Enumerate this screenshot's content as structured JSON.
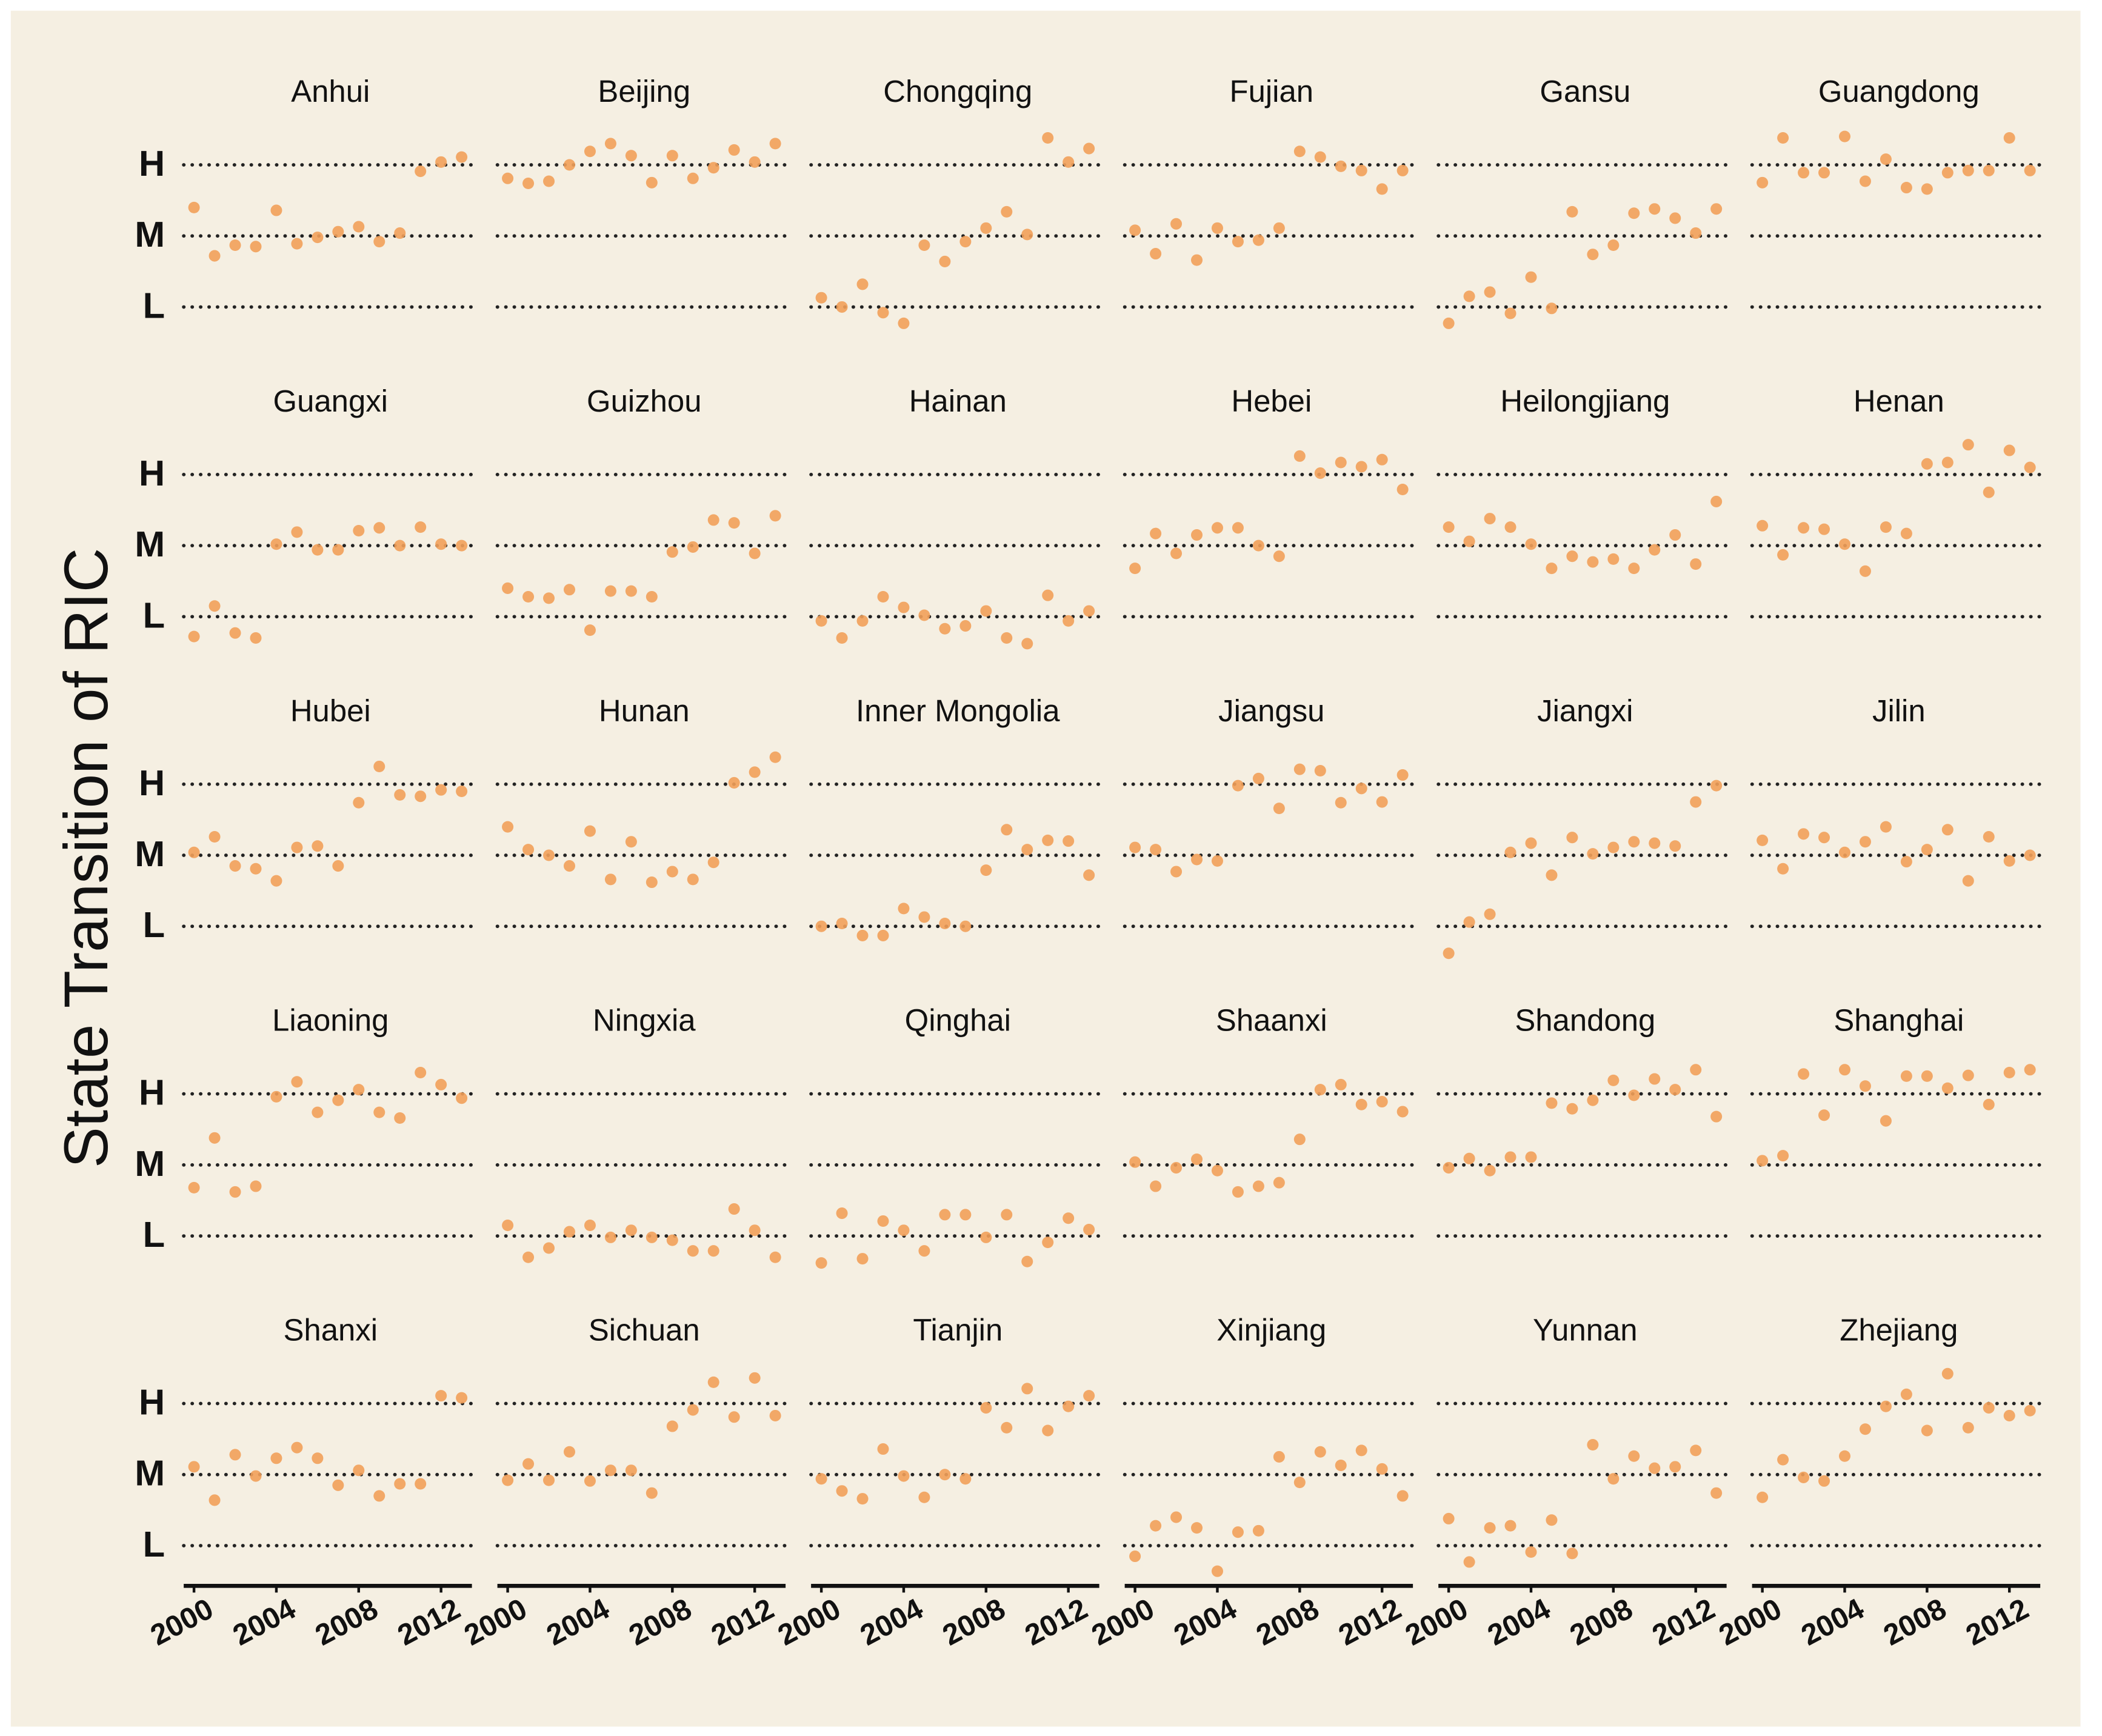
{
  "chart_data": {
    "type": "scatter",
    "y_label": "State Transition of RIC",
    "color": "#f2a05a",
    "x": [
      2000,
      2001,
      2002,
      2003,
      2004,
      2005,
      2006,
      2007,
      2008,
      2009,
      2010,
      2011,
      2012,
      2013
    ],
    "xlim": [
      1999.5,
      2013.5
    ],
    "xticks": [
      2000,
      2004,
      2008,
      2012
    ],
    "ylim": [
      0.5,
      3.5
    ],
    "yticks": [
      {
        "value": 1,
        "label": "L"
      },
      {
        "value": 2,
        "label": "M"
      },
      {
        "value": 3,
        "label": "H"
      }
    ],
    "grid": true,
    "panels": [
      {
        "title": "Anhui",
        "values": [
          2.4,
          1.72,
          1.87,
          1.85,
          2.36,
          1.89,
          1.98,
          2.06,
          2.13,
          1.92,
          2.04,
          2.91,
          3.04,
          3.11
        ]
      },
      {
        "title": "Beijing",
        "values": [
          2.81,
          2.74,
          2.77,
          3.0,
          3.19,
          3.3,
          3.13,
          2.75,
          3.13,
          2.81,
          2.96,
          3.21,
          3.04,
          3.3
        ]
      },
      {
        "title": "Chongqing",
        "values": [
          1.13,
          1.0,
          1.32,
          0.92,
          0.77,
          1.87,
          1.64,
          1.92,
          2.11,
          2.34,
          2.02,
          3.38,
          3.04,
          3.23
        ]
      },
      {
        "title": "Fujian",
        "values": [
          2.08,
          1.75,
          2.17,
          1.66,
          2.11,
          1.92,
          1.94,
          2.11,
          3.19,
          3.11,
          2.98,
          2.92,
          2.66,
          2.92
        ]
      },
      {
        "title": "Gansu",
        "values": [
          0.77,
          1.15,
          1.21,
          0.91,
          1.42,
          0.98,
          2.34,
          1.74,
          1.87,
          2.32,
          2.38,
          2.25,
          2.04,
          2.38
        ]
      },
      {
        "title": "Guangdong",
        "values": [
          2.75,
          3.38,
          2.89,
          2.89,
          3.4,
          2.77,
          3.08,
          2.68,
          2.66,
          2.89,
          2.92,
          2.92,
          3.38,
          2.92
        ]
      },
      {
        "title": "Guangxi",
        "values": [
          0.72,
          1.15,
          0.77,
          0.7,
          2.02,
          2.19,
          1.94,
          1.94,
          2.21,
          2.25,
          2.0,
          2.26,
          2.02,
          2.0
        ]
      },
      {
        "title": "Guizhou",
        "values": [
          1.4,
          1.28,
          1.26,
          1.38,
          0.81,
          1.36,
          1.36,
          1.28,
          1.91,
          1.98,
          2.36,
          2.32,
          1.89,
          2.42
        ]
      },
      {
        "title": "Hainan",
        "values": [
          0.94,
          0.7,
          0.94,
          1.28,
          1.13,
          1.02,
          0.83,
          0.87,
          1.08,
          0.7,
          0.62,
          1.3,
          0.94,
          1.08
        ]
      },
      {
        "title": "Hebei",
        "values": [
          1.68,
          2.17,
          1.89,
          2.15,
          2.25,
          2.25,
          2.0,
          1.85,
          3.26,
          3.02,
          3.17,
          3.11,
          3.21,
          2.79
        ]
      },
      {
        "title": "Heilongjiang",
        "values": [
          2.26,
          2.06,
          2.38,
          2.26,
          2.02,
          1.68,
          1.85,
          1.77,
          1.81,
          1.68,
          1.94,
          2.15,
          1.74,
          2.62
        ]
      },
      {
        "title": "Henan",
        "values": [
          2.28,
          1.87,
          2.25,
          2.23,
          2.02,
          1.64,
          2.26,
          2.17,
          3.15,
          3.17,
          3.42,
          2.75,
          3.34,
          3.1
        ]
      },
      {
        "title": "Hubei",
        "values": [
          2.04,
          2.26,
          1.85,
          1.81,
          1.64,
          2.11,
          2.13,
          1.85,
          2.74,
          3.25,
          2.85,
          2.83,
          2.92,
          2.9
        ]
      },
      {
        "title": "Hunan",
        "values": [
          2.4,
          2.08,
          2.0,
          1.85,
          2.34,
          1.66,
          2.19,
          1.62,
          1.77,
          1.66,
          1.9,
          3.02,
          3.17,
          3.38
        ]
      },
      {
        "title": "Inner Mongolia",
        "values": [
          1.0,
          1.04,
          0.87,
          0.87,
          1.25,
          1.13,
          1.04,
          1.0,
          1.79,
          2.36,
          2.08,
          2.21,
          2.2,
          1.72
        ]
      },
      {
        "title": "Jiangsu",
        "values": [
          2.11,
          2.08,
          1.77,
          1.94,
          1.92,
          2.98,
          3.08,
          2.66,
          3.21,
          3.19,
          2.74,
          2.94,
          2.75,
          3.13
        ]
      },
      {
        "title": "Jiangxi",
        "values": [
          0.62,
          1.06,
          1.17,
          2.04,
          2.17,
          1.72,
          2.25,
          2.02,
          2.11,
          2.19,
          2.17,
          2.13,
          2.75,
          2.98
        ]
      },
      {
        "title": "Jilin",
        "values": [
          2.21,
          1.81,
          2.3,
          2.25,
          2.04,
          2.19,
          2.4,
          1.91,
          2.08,
          2.36,
          1.64,
          2.26,
          1.92,
          2.0
        ]
      },
      {
        "title": "Liaoning",
        "values": [
          1.68,
          2.38,
          1.62,
          1.7,
          2.96,
          3.17,
          2.74,
          2.91,
          3.06,
          2.74,
          2.66,
          3.3,
          3.13,
          2.94
        ]
      },
      {
        "title": "Ningxia",
        "values": [
          1.15,
          0.7,
          0.83,
          1.06,
          1.15,
          0.98,
          1.08,
          0.98,
          0.94,
          0.79,
          0.79,
          1.38,
          1.08,
          0.7
        ]
      },
      {
        "title": "Qinghai",
        "values": [
          0.62,
          1.32,
          0.68,
          1.21,
          1.08,
          0.79,
          1.3,
          1.3,
          0.98,
          1.3,
          0.64,
          0.91,
          1.25,
          1.09
        ]
      },
      {
        "title": "Shaanxi",
        "values": [
          2.04,
          1.7,
          1.96,
          2.08,
          1.92,
          1.62,
          1.7,
          1.75,
          2.36,
          3.06,
          3.13,
          2.85,
          2.89,
          2.75
        ]
      },
      {
        "title": "Shandong",
        "values": [
          1.96,
          2.09,
          1.92,
          2.11,
          2.11,
          2.87,
          2.79,
          2.91,
          3.19,
          2.98,
          3.21,
          3.06,
          3.34,
          2.68
        ]
      },
      {
        "title": "Shanghai",
        "values": [
          2.06,
          2.13,
          3.28,
          2.7,
          3.34,
          3.11,
          2.62,
          3.25,
          3.25,
          3.08,
          3.26,
          2.85,
          3.3,
          3.34
        ]
      },
      {
        "title": "Shanxi",
        "values": [
          2.11,
          1.64,
          2.28,
          1.98,
          2.23,
          2.38,
          2.23,
          1.85,
          2.06,
          1.7,
          1.87,
          1.87,
          3.11,
          3.08
        ]
      },
      {
        "title": "Sichuan",
        "values": [
          1.92,
          2.15,
          1.92,
          2.32,
          1.91,
          2.06,
          2.06,
          1.74,
          2.68,
          2.91,
          3.3,
          2.81,
          3.36,
          2.83
        ]
      },
      {
        "title": "Tianjin",
        "values": [
          1.94,
          1.77,
          1.66,
          2.36,
          1.98,
          1.68,
          2.0,
          1.94,
          2.94,
          2.66,
          3.21,
          2.62,
          2.96,
          3.11
        ]
      },
      {
        "title": "Xinjiang",
        "values": [
          0.85,
          1.28,
          1.4,
          1.25,
          0.64,
          1.19,
          1.21,
          2.25,
          1.89,
          2.32,
          2.13,
          2.34,
          2.08,
          1.7
        ]
      },
      {
        "title": "Yunnan",
        "values": [
          1.38,
          0.77,
          1.25,
          1.28,
          0.91,
          1.36,
          0.89,
          2.42,
          1.94,
          2.26,
          2.09,
          2.11,
          2.34,
          1.74
        ]
      },
      {
        "title": "Zhejiang",
        "values": [
          1.68,
          2.21,
          1.96,
          1.91,
          2.26,
          2.64,
          2.96,
          3.13,
          2.62,
          3.42,
          2.66,
          2.94,
          2.83,
          2.9
        ]
      }
    ]
  }
}
